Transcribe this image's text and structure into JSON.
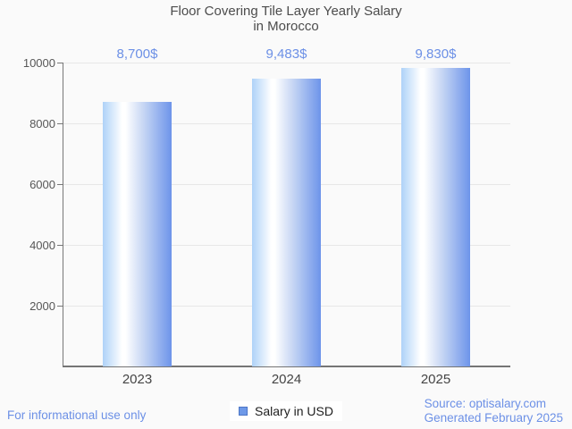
{
  "title": {
    "line1": "Floor Covering Tile Layer Yearly Salary",
    "line2": "in Morocco"
  },
  "legend": {
    "label": "Salary in USD",
    "swatch_color": "#6e99e8"
  },
  "footer": {
    "disclaimer": "For informational use only",
    "source_line1": "Source: optisalary.com",
    "source_line2": "Generated February 2025"
  },
  "colors": {
    "background": "#fafafa",
    "bar_gradient_left": "#aed2f8",
    "bar_gradient_highlight": "#ffffff",
    "bar_gradient_right": "#6d94ea",
    "accent_blue_text": "#6c90e6",
    "gridline": "#e7e7e7",
    "axis": "#757575",
    "title_text": "#4c4c4c",
    "axis_label_text": "#575757"
  },
  "chart_data": {
    "type": "bar",
    "title": "Floor Covering Tile Layer Yearly Salary in Morocco",
    "categories": [
      "2023",
      "2024",
      "2025"
    ],
    "series": [
      {
        "name": "Salary in USD",
        "values": [
          8700,
          9483,
          9830
        ],
        "value_labels": [
          "8,700$",
          "9,483$",
          "9,830$"
        ]
      }
    ],
    "xlabel": "",
    "ylabel": "",
    "ylim": [
      0,
      10000
    ],
    "yticks": [
      2000,
      4000,
      6000,
      8000,
      10000
    ],
    "grid": true,
    "legend_position": "bottom",
    "value_label_position": "top-of-plot"
  }
}
